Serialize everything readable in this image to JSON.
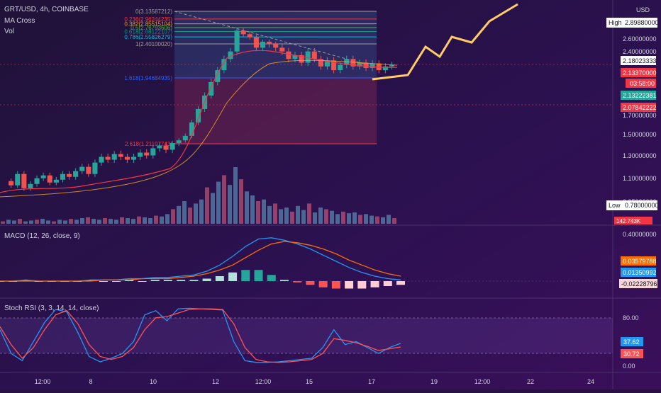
{
  "header": {
    "symbol_line": "GRT/USD, 4h, COINBASE",
    "indicator_ma": "MA Cross",
    "indicator_vol": "Vol"
  },
  "price_axis": {
    "currency": "USD",
    "ticks": [
      "2.80000000",
      "2.60000000",
      "2.40000000",
      "1.70000000",
      "1.50000000",
      "1.30000000",
      "1.10000000",
      "0.95000000",
      "0.78000000"
    ],
    "high_label": "High",
    "high_value": "2.89880000",
    "low_label": "Low",
    "low_value": "0.78000000",
    "price_tags": [
      "2.18023333",
      "2.13370000",
      "03:58:00",
      "2.13222381",
      "2.07842222"
    ],
    "volume_tag": "142.743K"
  },
  "macd_panel": {
    "title": "MACD (12, 26, close, 9)",
    "ticks": [
      "0.40000000"
    ],
    "tags": [
      "0.03579788",
      "0.01350992",
      "-0.02228796"
    ]
  },
  "stoch_panel": {
    "title": "Stoch RSI (3, 3, 14, 14, close)",
    "ticks": [
      "80.00",
      "0.00"
    ],
    "tags": [
      "37.62",
      "30.72"
    ]
  },
  "time_axis": {
    "labels": [
      "12:00",
      "8",
      "10",
      "12",
      "12:00",
      "15",
      "17",
      "19",
      "12:00",
      "22",
      "24"
    ]
  },
  "chart_data": {
    "type": "candlestick",
    "fib_levels": [
      {
        "label": "0(3.13587212)",
        "value": 3.13587212,
        "color": "#9e9e9e"
      },
      {
        "label": "0.236(2.96244235)",
        "value": 2.96244235,
        "color": "#f23645"
      },
      {
        "label": "0.382(2.85515104)",
        "value": 2.85515104,
        "color": "#ff9800"
      },
      {
        "label": "0.5(2.76793606)",
        "value": 2.76793606,
        "color": "#4caf50"
      },
      {
        "label": "0.618(2.68122107)",
        "value": 2.68122107,
        "color": "#089981"
      },
      {
        "label": "0.786(2.55826279)",
        "value": 2.55826279,
        "color": "#00bcd4"
      },
      {
        "label": "1(2.40100020)",
        "value": 2.4010002,
        "color": "#9e9e9e"
      },
      {
        "label": "1.618(1.94684935)",
        "value": 1.94684935,
        "color": "#2962ff"
      },
      {
        "label": "2.618(1.21197743)",
        "value": 1.21197743,
        "color": "#f23645"
      }
    ],
    "price_range": [
      0.7,
      3.3
    ],
    "volume": [
      3,
      5,
      4,
      6,
      3,
      4,
      5,
      6,
      4,
      3,
      5,
      4,
      6,
      5,
      7,
      8,
      6,
      5,
      7,
      6,
      5,
      8,
      7,
      6,
      9,
      8,
      7,
      10,
      9,
      12,
      18,
      22,
      28,
      20,
      25,
      30,
      45,
      38,
      52,
      60,
      48,
      70,
      55,
      40,
      35,
      28,
      30,
      22,
      25,
      18,
      20,
      15,
      22,
      17,
      25,
      14,
      20,
      18,
      16,
      12,
      15,
      13,
      14,
      11,
      12,
      10,
      9,
      8,
      11,
      7
    ],
    "projection_path": [
      [
        2.03,
        0
      ],
      [
        2.05,
        2
      ],
      [
        2.62,
        4
      ],
      [
        2.38,
        6
      ],
      [
        2.75,
        8
      ],
      [
        2.56,
        10
      ],
      [
        2.95,
        12
      ],
      [
        3.2,
        14
      ]
    ],
    "macd": {
      "zero_line": 0,
      "ylim": [
        -0.12,
        0.42
      ],
      "macd_line": [
        0.0,
        0.0,
        0.01,
        0.0,
        0.0,
        0.0,
        0.0,
        0.01,
        0.01,
        0.01,
        0.02,
        0.02,
        0.03,
        0.03,
        0.04,
        0.05,
        0.08,
        0.13,
        0.2,
        0.28,
        0.34,
        0.35,
        0.33,
        0.3,
        0.26,
        0.21,
        0.16,
        0.11,
        0.07,
        0.04,
        0.02,
        0.01
      ],
      "signal_line": [
        0.0,
        0.0,
        0.0,
        0.0,
        0.0,
        0.0,
        0.0,
        0.0,
        0.01,
        0.01,
        0.01,
        0.02,
        0.02,
        0.02,
        0.03,
        0.04,
        0.06,
        0.09,
        0.13,
        0.19,
        0.25,
        0.3,
        0.32,
        0.31,
        0.29,
        0.26,
        0.22,
        0.17,
        0.13,
        0.09,
        0.06,
        0.04
      ],
      "histogram": [
        0.0,
        0.0,
        0.01,
        0.0,
        0.0,
        0.0,
        0.0,
        0.01,
        0.0,
        0.0,
        0.01,
        0.0,
        0.01,
        0.01,
        0.01,
        0.01,
        0.02,
        0.04,
        0.07,
        0.09,
        0.09,
        0.05,
        0.01,
        -0.01,
        -0.03,
        -0.05,
        -0.06,
        -0.06,
        -0.06,
        -0.05,
        -0.04,
        -0.03
      ]
    },
    "stoch_rsi": {
      "ylim": [
        0,
        100
      ],
      "k": [
        60,
        20,
        8,
        40,
        72,
        94,
        90,
        55,
        15,
        6,
        12,
        20,
        40,
        85,
        92,
        75,
        95,
        96,
        95,
        94,
        93,
        40,
        8,
        5,
        5,
        6,
        8,
        10,
        12,
        30,
        60,
        35,
        40,
        30,
        20,
        30,
        37
      ],
      "d": [
        65,
        35,
        12,
        30,
        60,
        85,
        92,
        70,
        35,
        15,
        10,
        15,
        30,
        60,
        80,
        82,
        88,
        94,
        95,
        95,
        94,
        70,
        30,
        10,
        6,
        5,
        6,
        8,
        10,
        20,
        45,
        42,
        38,
        32,
        25,
        28,
        31
      ]
    }
  }
}
